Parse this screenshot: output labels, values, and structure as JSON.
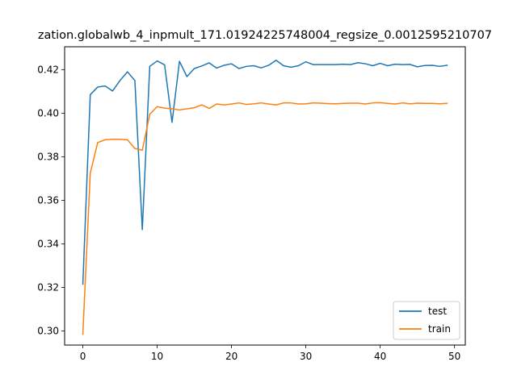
{
  "chart_data": {
    "type": "line",
    "title": "zation.globalwb_4_inpmult_171.01924225748004_regsize_0.0012595210707",
    "xlabel": "",
    "ylabel": "",
    "xlim": [
      -2.45,
      51.45
    ],
    "ylim": [
      0.2935,
      0.4305
    ],
    "xticks": [
      0,
      10,
      20,
      30,
      40,
      50
    ],
    "yticks": [
      0.3,
      0.32,
      0.34,
      0.36,
      0.38,
      0.4,
      0.42
    ],
    "ytick_labels": [
      "0.30",
      "0.32",
      "0.34",
      "0.36",
      "0.38",
      "0.40",
      "0.42"
    ],
    "grid": false,
    "legend_position": "lower-right",
    "x": [
      0,
      1,
      2,
      3,
      4,
      5,
      6,
      7,
      8,
      9,
      10,
      11,
      12,
      13,
      14,
      15,
      16,
      17,
      18,
      19,
      20,
      21,
      22,
      23,
      24,
      25,
      26,
      27,
      28,
      29,
      30,
      31,
      32,
      33,
      34,
      35,
      36,
      37,
      38,
      39,
      40,
      41,
      42,
      43,
      44,
      45,
      46,
      47,
      48,
      49
    ],
    "series": [
      {
        "name": "test",
        "color": "#1f77b4",
        "values": [
          0.3215,
          0.4085,
          0.412,
          0.4125,
          0.4102,
          0.415,
          0.419,
          0.415,
          0.3465,
          0.4215,
          0.424,
          0.4222,
          0.3958,
          0.4238,
          0.4168,
          0.4205,
          0.4217,
          0.4231,
          0.4207,
          0.422,
          0.4227,
          0.4205,
          0.4215,
          0.4218,
          0.4208,
          0.422,
          0.4243,
          0.4218,
          0.4211,
          0.4218,
          0.4236,
          0.4223,
          0.4223,
          0.4223,
          0.4223,
          0.4225,
          0.4223,
          0.4232,
          0.4227,
          0.4218,
          0.4229,
          0.4218,
          0.4225,
          0.4223,
          0.4224,
          0.4213,
          0.4219,
          0.422,
          0.4215,
          0.422
        ]
      },
      {
        "name": "train",
        "color": "#ff7f0e",
        "values": [
          0.2985,
          0.3725,
          0.3865,
          0.3878,
          0.388,
          0.388,
          0.3878,
          0.3838,
          0.383,
          0.3995,
          0.403,
          0.4023,
          0.402,
          0.4015,
          0.402,
          0.4025,
          0.4038,
          0.4022,
          0.4042,
          0.4038,
          0.4042,
          0.4047,
          0.404,
          0.4043,
          0.4047,
          0.4042,
          0.4038,
          0.4047,
          0.4047,
          0.4042,
          0.4043,
          0.4047,
          0.4046,
          0.4044,
          0.4043,
          0.4045,
          0.4046,
          0.4046,
          0.4042,
          0.4047,
          0.4048,
          0.4045,
          0.4042,
          0.4047,
          0.4043,
          0.4046,
          0.4045,
          0.4045,
          0.4043,
          0.4045
        ]
      }
    ]
  }
}
